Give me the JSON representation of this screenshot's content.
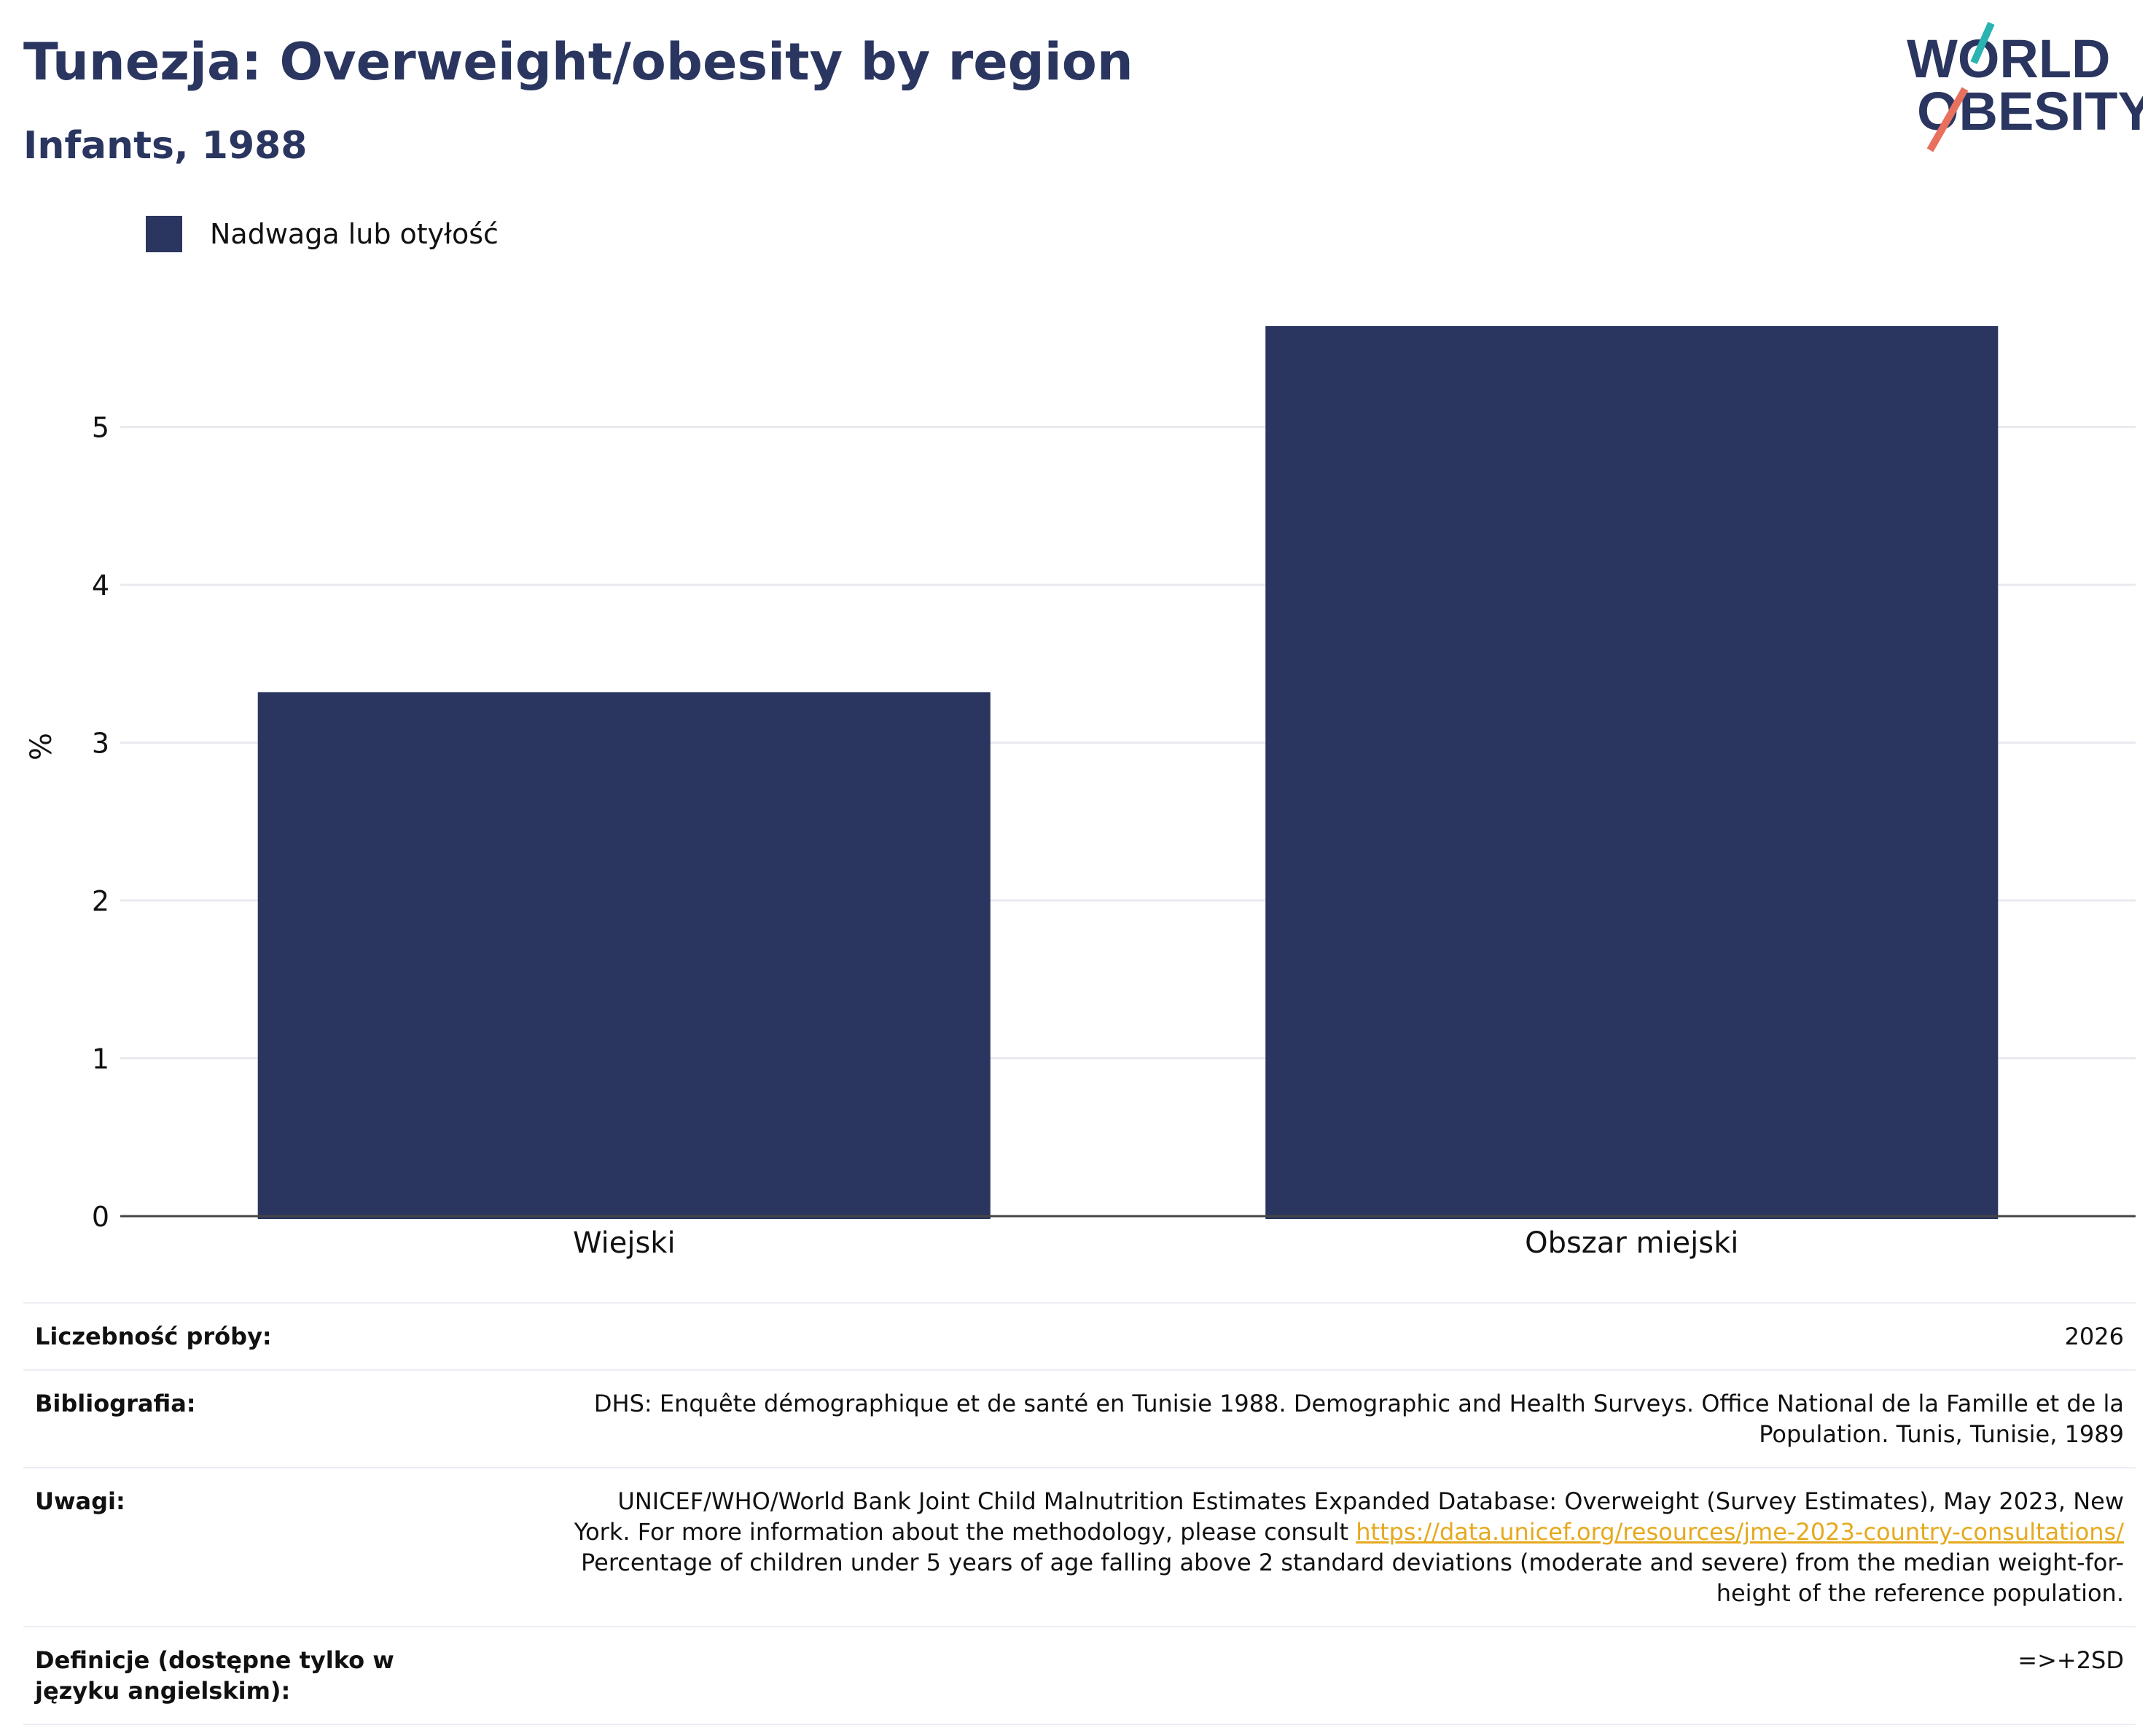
{
  "header": {
    "title": "Tunezja: Overweight/obesity by region",
    "subtitle": "Infants, 1988"
  },
  "logo": {
    "line1": "WORLD",
    "line2": "OBESITY",
    "accent_teal": "#2ab3b1",
    "accent_coral": "#e8705f"
  },
  "colors": {
    "bar": "#2a3660",
    "grid": "#e8eaf0",
    "axis": "#444444"
  },
  "chart_data": {
    "type": "bar",
    "categories": [
      "Wiejski",
      "Obszar miejski"
    ],
    "series": [
      {
        "name": "Nadwaga lub otyłość",
        "values": [
          3.32,
          5.64
        ]
      }
    ],
    "ylabel": "%",
    "ylim": [
      0,
      5.95
    ],
    "yticks": [
      0,
      1,
      2,
      3,
      4,
      5
    ],
    "grid": true,
    "legend_position": "top-left"
  },
  "info": {
    "sample_label": "Liczebność próby:",
    "sample_value": "2026",
    "bib_label": "Bibliografia:",
    "bib_value": "DHS: Enquête démographique et de santé en Tunisie 1988. Demographic and Health Surveys. Office National de la Famille et de la Population. Tunis, Tunisie, 1989",
    "notes_label": "Uwagi:",
    "notes_text1": "UNICEF/WHO/World Bank Joint Child Malnutrition Estimates Expanded Database: Overweight (Survey Estimates), May 2023, New York. For more information about the methodology, please consult ",
    "notes_link": "https://data.unicef.org/resources/jme-2023-country-consultations/",
    "notes_text2": " Percentage of children under 5 years of age falling above 2 standard deviations (moderate and severe) from the median weight-for-height of the reference population.",
    "def_label": "Definicje (dostępne tylko w języku angielskim):",
    "def_value": "=>+2SD"
  }
}
